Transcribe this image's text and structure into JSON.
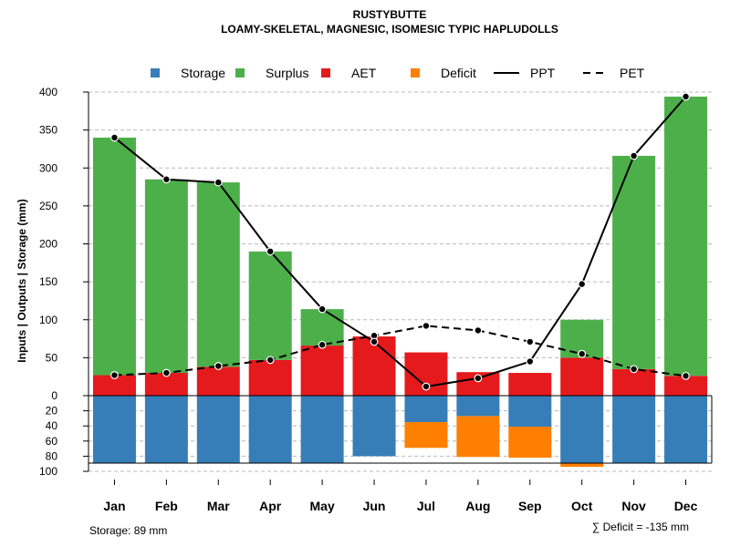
{
  "chart_data": {
    "type": "bar",
    "title": "RUSTYBUTTE",
    "subtitle": "LOAMY-SKELETAL, MAGNESIC, ISOMESIC TYPIC HAPLUDOLLS",
    "ylabel": "Inputs | Outputs | Storage     (mm)",
    "categories": [
      "Jan",
      "Feb",
      "Mar",
      "Apr",
      "May",
      "Jun",
      "Jul",
      "Aug",
      "Sep",
      "Oct",
      "Nov",
      "Dec"
    ],
    "ylim_top": [
      0,
      400
    ],
    "ylim_bottom": [
      0,
      100
    ],
    "yticks_top": [
      "0",
      "50",
      "100",
      "150",
      "200",
      "250",
      "300",
      "350",
      "400"
    ],
    "yticks_bottom": [
      "20",
      "40",
      "60",
      "80",
      "100"
    ],
    "series": [
      {
        "name": "AET",
        "color": "#E41A1C",
        "values": [
          27,
          30,
          38,
          47,
          66,
          78,
          57,
          31,
          30,
          50,
          35,
          26
        ]
      },
      {
        "name": "Surplus",
        "color": "#4DAF4A",
        "values": [
          313,
          255,
          243,
          143,
          48,
          0,
          0,
          0,
          0,
          50,
          281,
          368
        ]
      },
      {
        "name": "Storage",
        "color": "#377EB8",
        "values": [
          89,
          89,
          89,
          89,
          89,
          80,
          35,
          27,
          41,
          89,
          89,
          89
        ]
      },
      {
        "name": "Deficit",
        "color": "#FF7F00",
        "values": [
          0,
          0,
          0,
          0,
          0,
          0,
          34,
          54,
          41,
          5,
          0,
          0
        ]
      },
      {
        "name": "PPT",
        "color": "#000000",
        "style": "solid",
        "values": [
          340,
          285,
          281,
          190,
          114,
          71,
          12,
          23,
          45,
          147,
          316,
          394
        ]
      },
      {
        "name": "PET",
        "color": "#000000",
        "style": "dashed",
        "values": [
          27,
          30,
          39,
          47,
          67,
          79,
          92,
          86,
          71,
          55,
          35,
          26
        ]
      }
    ],
    "legend": [
      {
        "label": "Storage",
        "kind": "box",
        "color": "#377EB8"
      },
      {
        "label": "Surplus",
        "kind": "box",
        "color": "#4DAF4A"
      },
      {
        "label": "AET",
        "kind": "box",
        "color": "#E41A1C"
      },
      {
        "label": "Deficit",
        "kind": "box",
        "color": "#FF7F00"
      },
      {
        "label": "PPT",
        "kind": "solid-line",
        "color": "#000000"
      },
      {
        "label": "PET",
        "kind": "dashed-line",
        "color": "#000000"
      }
    ],
    "legend_position": "top",
    "grid": true,
    "storage_note": "Storage: 89 mm",
    "deficit_note": "∑ Deficit = -135 mm"
  }
}
